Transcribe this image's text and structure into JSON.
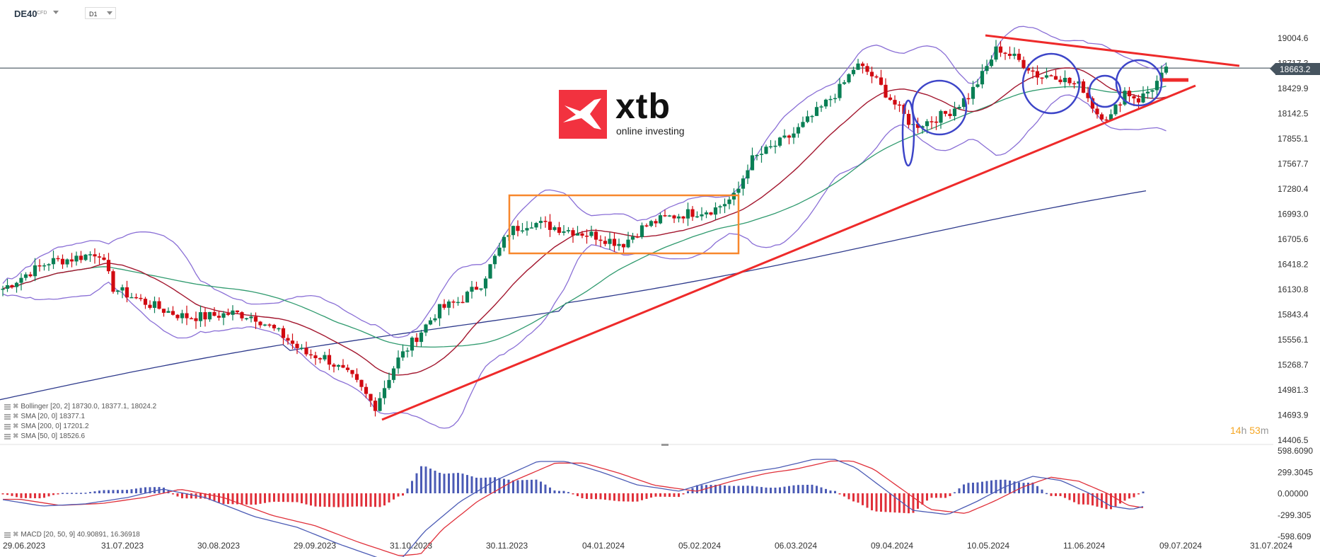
{
  "header": {
    "symbol": "DE40",
    "symbol_type": "CFD",
    "timeframe": "D1"
  },
  "logo": {
    "brand": "xtb",
    "tagline": "online investing",
    "color": "#f2323f"
  },
  "current_price": "18663.2",
  "price_axis": [
    "19004.6",
    "18717.3",
    "18429.9",
    "18142.5",
    "17855.1",
    "17567.7",
    "17280.4",
    "16993.0",
    "16705.6",
    "16418.2",
    "16130.8",
    "15843.4",
    "15556.1",
    "15268.7",
    "14981.3",
    "14693.9",
    "14406.5"
  ],
  "macd_axis": [
    "598.6090",
    "299.3045",
    "0.00000",
    "-299.305",
    "-598.609"
  ],
  "date_axis": [
    "29.06.2023",
    "31.07.2023",
    "30.08.2023",
    "29.09.2023",
    "31.10.2023",
    "30.11.2023",
    "04.01.2024",
    "05.02.2024",
    "06.03.2024",
    "09.04.2024",
    "10.05.2024",
    "11.06.2024",
    "09.07.2024",
    "31.07.2024"
  ],
  "legend": {
    "bollinger": "Bollinger  [20, 2] 18730.0,  18377.1,  18024.2",
    "sma20": "SMA [20, 0] 18377.1",
    "sma200": "SMA [200, 0] 17201.2",
    "sma50": "SMA [50, 0] 18526.6",
    "macd": "MACD [20, 50, 9] 40.90891,  16.36918"
  },
  "timer": {
    "hours": "14",
    "h": "h",
    "minutes": "53",
    "m": "m"
  },
  "colors": {
    "up": "#0a7f55",
    "down": "#d10a11",
    "bollinger": "#8a6fd6",
    "sma20": "#a3172f",
    "sma50": "#2f9a6e",
    "sma200": "#2e3a8c",
    "trendline": "#ee2a2a",
    "range_box": "#f7872c",
    "circles": "#3d45c8",
    "macd_line": "#4b5bb5",
    "signal_line": "#e0303a"
  },
  "chart_data": {
    "type": "candlestick",
    "title": "DE40 CFD D1",
    "xlabel": "",
    "ylabel": "",
    "ylim": [
      14406.5,
      19004.6
    ],
    "x_range": [
      "29.06.2023",
      "31.07.2024"
    ],
    "last_price": 18663.2,
    "indicators": {
      "bollinger_20_2": {
        "upper": 18730.0,
        "middle": 18377.1,
        "lower": 18024.2
      },
      "sma_20": 18377.1,
      "sma_200": 17201.2,
      "sma_50": 18526.6,
      "macd_20_50_9": {
        "macd": 40.90891,
        "signal": 16.36918,
        "ylim": [
          -598.609,
          598.609
        ]
      }
    },
    "approx_close_series": {
      "dates": [
        "29.06.2023",
        "31.07.2023",
        "30.08.2023",
        "29.09.2023",
        "31.10.2023",
        "30.11.2023",
        "04.01.2024",
        "05.02.2024",
        "06.03.2024",
        "09.04.2024",
        "10.05.2024",
        "11.06.2024",
        "01.07.2024"
      ],
      "values": [
        16150,
        16450,
        15900,
        15400,
        14800,
        16200,
        16700,
        16950,
        17700,
        18150,
        18700,
        18200,
        18660
      ]
    },
    "annotations": [
      {
        "type": "trendline_support",
        "from": [
          "27.10.2023",
          14700
        ],
        "to": [
          "10.07.2024",
          18500
        ]
      },
      {
        "type": "trendline_resistance",
        "from": [
          "15.05.2024",
          18900
        ],
        "to": [
          "25.07.2024",
          18650
        ]
      },
      {
        "type": "range_box",
        "from": [
          "27.11.2023",
          16700
        ],
        "to": [
          "07.02.2024",
          17250
        ]
      },
      {
        "type": "circles",
        "count": 5
      },
      {
        "type": "horizontal_line",
        "value": 18663.2
      }
    ]
  }
}
